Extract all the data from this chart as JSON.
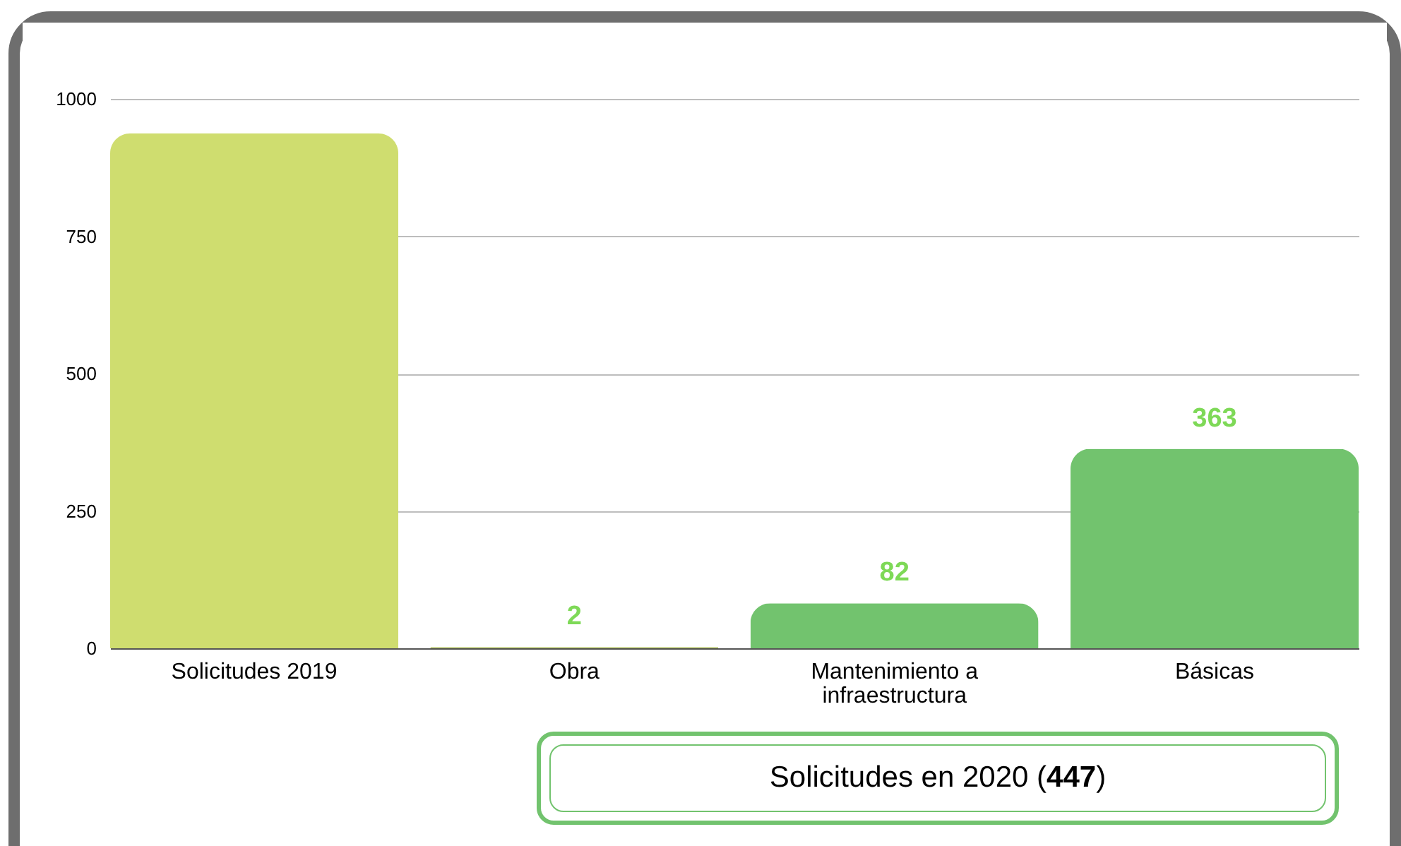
{
  "chart_data": {
    "type": "bar",
    "categories": [
      "Solicitudes 2019",
      "Obra",
      "Mantenimiento a infraestructura",
      "Básicas"
    ],
    "values": [
      937,
      2,
      82,
      363
    ],
    "colors": [
      "#cfdd6f",
      "#8ea521",
      "#72c36e",
      "#72c36e"
    ],
    "value_labels": [
      null,
      "2",
      "82",
      "363"
    ],
    "ylim": [
      0,
      1000
    ],
    "yticks": [
      0,
      250,
      500,
      750,
      1000
    ],
    "grid": "y",
    "legend": false,
    "annotations": [
      "Solicitudes en 2020 (447)"
    ]
  }
}
